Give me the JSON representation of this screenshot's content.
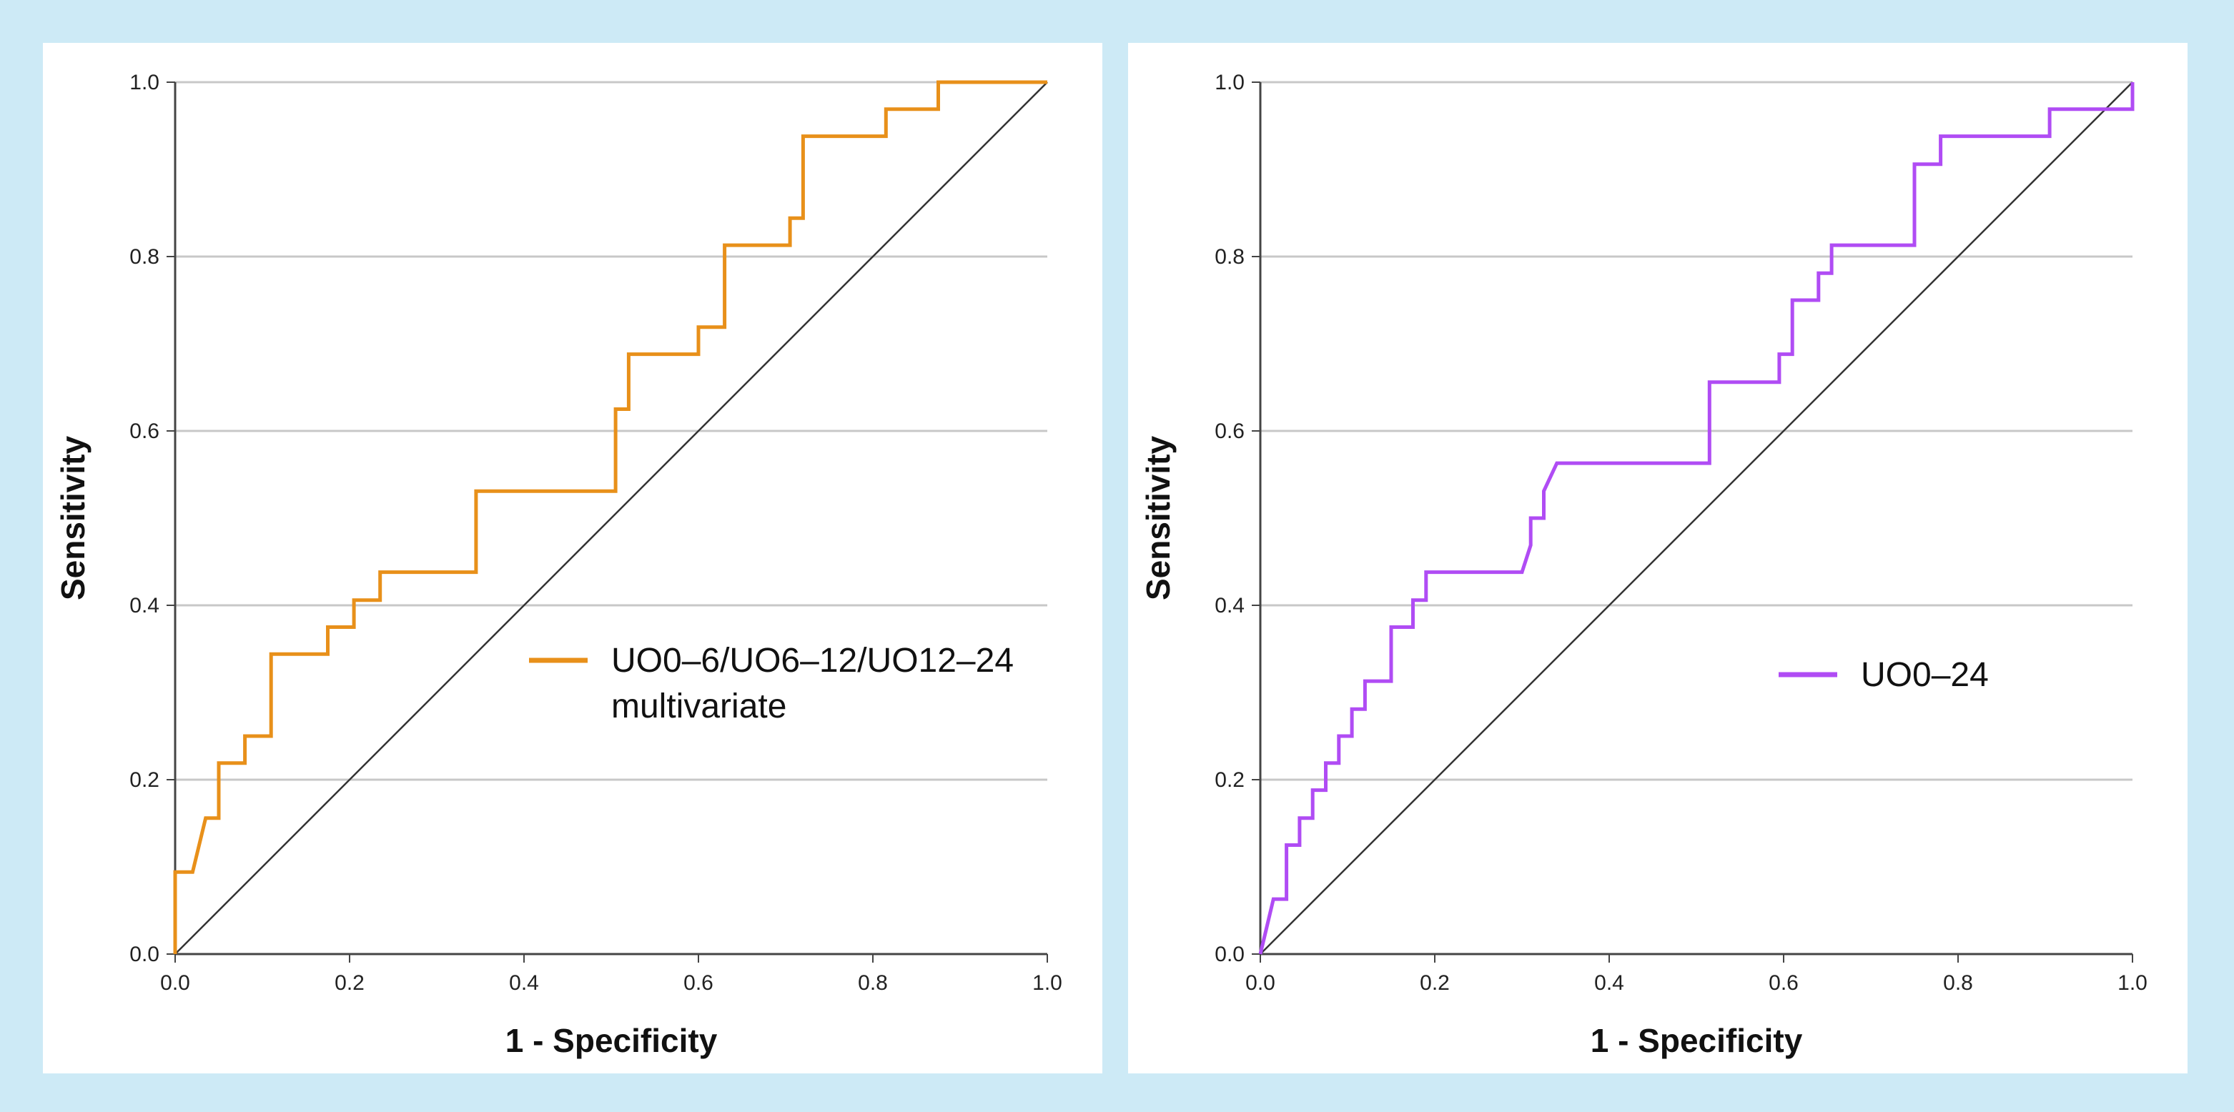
{
  "chart_data": [
    {
      "type": "line",
      "title": "",
      "xlabel": "1 - Specificity",
      "ylabel": "Sensitivity",
      "xlim": [
        0,
        1
      ],
      "ylim": [
        0,
        1
      ],
      "x_ticks": [
        "0.0",
        "0.2",
        "0.4",
        "0.6",
        "0.8",
        "1.0"
      ],
      "y_ticks": [
        "0.0",
        "0.2",
        "0.4",
        "0.6",
        "0.8",
        "1.0"
      ],
      "grid": "horizontal",
      "legend_position": "center-right",
      "reference_line": {
        "x": [
          0,
          1
        ],
        "y": [
          0,
          1
        ],
        "color": "#333333"
      },
      "series": [
        {
          "name": "UO0–6/UO6–12/UO12–24 multivariate",
          "legend_lines": [
            "UO0–6/UO6–12/UO12–24",
            "multivariate"
          ],
          "color": "#e8901a",
          "x": [
            0,
            0,
            0.02,
            0.035,
            0.05,
            0.05,
            0.08,
            0.08,
            0.11,
            0.11,
            0.175,
            0.175,
            0.205,
            0.205,
            0.235,
            0.235,
            0.345,
            0.345,
            0.505,
            0.505,
            0.52,
            0.52,
            0.6,
            0.6,
            0.63,
            0.63,
            0.705,
            0.705,
            0.72,
            0.72,
            0.815,
            0.815,
            0.875,
            0.875,
            1.0
          ],
          "y": [
            0,
            0.094,
            0.094,
            0.156,
            0.156,
            0.219,
            0.219,
            0.25,
            0.25,
            0.344,
            0.344,
            0.375,
            0.375,
            0.406,
            0.406,
            0.438,
            0.438,
            0.531,
            0.531,
            0.625,
            0.625,
            0.688,
            0.688,
            0.719,
            0.719,
            0.813,
            0.813,
            0.844,
            0.844,
            0.938,
            0.938,
            0.969,
            0.969,
            1.0,
            1.0
          ]
        }
      ]
    },
    {
      "type": "line",
      "title": "",
      "xlabel": "1 - Specificity",
      "ylabel": "Sensitivity",
      "xlim": [
        0,
        1
      ],
      "ylim": [
        0,
        1
      ],
      "x_ticks": [
        "0.0",
        "0.2",
        "0.4",
        "0.6",
        "0.8",
        "1.0"
      ],
      "y_ticks": [
        "0.0",
        "0.2",
        "0.4",
        "0.6",
        "0.8",
        "1.0"
      ],
      "grid": "horizontal",
      "legend_position": "center-right",
      "reference_line": {
        "x": [
          0,
          1
        ],
        "y": [
          0,
          1
        ],
        "color": "#333333"
      },
      "series": [
        {
          "name": "UO0–24",
          "legend_lines": [
            "UO0–24"
          ],
          "color": "#b04cf4",
          "x": [
            0,
            0.015,
            0.03,
            0.03,
            0.045,
            0.045,
            0.06,
            0.06,
            0.075,
            0.075,
            0.09,
            0.09,
            0.105,
            0.105,
            0.12,
            0.12,
            0.15,
            0.15,
            0.175,
            0.175,
            0.19,
            0.19,
            0.205,
            0.205,
            0.3,
            0.31,
            0.31,
            0.325,
            0.325,
            0.34,
            0.515,
            0.515,
            0.595,
            0.595,
            0.61,
            0.61,
            0.64,
            0.64,
            0.655,
            0.655,
            0.75,
            0.75,
            0.78,
            0.78,
            0.905,
            0.905,
            1.0,
            1.0
          ],
          "y": [
            0,
            0.063,
            0.063,
            0.125,
            0.125,
            0.156,
            0.156,
            0.188,
            0.188,
            0.219,
            0.219,
            0.25,
            0.25,
            0.281,
            0.281,
            0.313,
            0.313,
            0.375,
            0.375,
            0.406,
            0.406,
            0.438,
            0.438,
            0.438,
            0.438,
            0.469,
            0.5,
            0.5,
            0.531,
            0.563,
            0.563,
            0.656,
            0.656,
            0.688,
            0.688,
            0.75,
            0.75,
            0.781,
            0.781,
            0.813,
            0.813,
            0.906,
            0.906,
            0.938,
            0.938,
            0.969,
            0.969,
            1.0
          ]
        }
      ]
    }
  ]
}
